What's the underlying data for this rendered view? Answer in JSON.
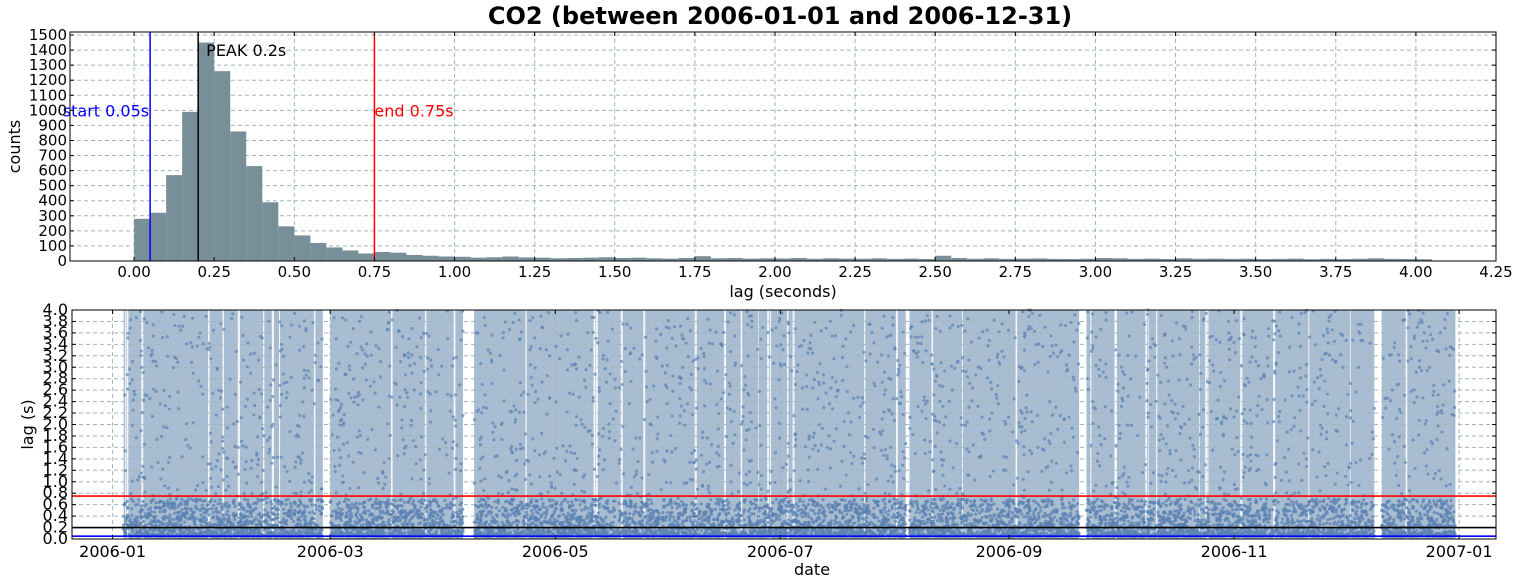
{
  "title": "CO2 (between 2006-01-01 and 2006-12-31)",
  "chart_data": [
    {
      "type": "bar",
      "kind": "histogram",
      "xlabel": "lag (seconds)",
      "ylabel": "counts",
      "xlim": [
        -0.2,
        4.25
      ],
      "ylim": [
        0,
        1520
      ],
      "xticks": [
        0.0,
        0.25,
        0.5,
        0.75,
        1.0,
        1.25,
        1.5,
        1.75,
        2.0,
        2.25,
        2.5,
        2.75,
        3.0,
        3.25,
        3.5,
        3.75,
        4.0,
        4.25
      ],
      "xtick_labels": [
        "0.00",
        "0.25",
        "0.50",
        "0.75",
        "1.00",
        "1.25",
        "1.50",
        "1.75",
        "2.00",
        "2.25",
        "2.50",
        "2.75",
        "3.00",
        "3.25",
        "3.50",
        "3.75",
        "4.00",
        "4.25"
      ],
      "yticks": [
        0,
        100,
        200,
        300,
        400,
        500,
        600,
        700,
        800,
        900,
        1000,
        1100,
        1200,
        1300,
        1400,
        1500
      ],
      "grid": true,
      "bar_color": "#788f9a",
      "bin_width": 0.05,
      "bins": [
        {
          "x": 0.0,
          "count": 280
        },
        {
          "x": 0.05,
          "count": 320
        },
        {
          "x": 0.1,
          "count": 570
        },
        {
          "x": 0.15,
          "count": 990
        },
        {
          "x": 0.2,
          "count": 1450
        },
        {
          "x": 0.25,
          "count": 1260
        },
        {
          "x": 0.3,
          "count": 860
        },
        {
          "x": 0.35,
          "count": 630
        },
        {
          "x": 0.4,
          "count": 390
        },
        {
          "x": 0.45,
          "count": 230
        },
        {
          "x": 0.5,
          "count": 170
        },
        {
          "x": 0.55,
          "count": 120
        },
        {
          "x": 0.6,
          "count": 90
        },
        {
          "x": 0.65,
          "count": 70
        },
        {
          "x": 0.7,
          "count": 50
        },
        {
          "x": 0.75,
          "count": 60
        },
        {
          "x": 0.8,
          "count": 55
        },
        {
          "x": 0.85,
          "count": 40
        },
        {
          "x": 0.9,
          "count": 35
        },
        {
          "x": 0.95,
          "count": 30
        },
        {
          "x": 1.0,
          "count": 28
        },
        {
          "x": 1.05,
          "count": 22
        },
        {
          "x": 1.1,
          "count": 25
        },
        {
          "x": 1.15,
          "count": 30
        },
        {
          "x": 1.2,
          "count": 24
        },
        {
          "x": 1.25,
          "count": 22
        },
        {
          "x": 1.3,
          "count": 18
        },
        {
          "x": 1.35,
          "count": 20
        },
        {
          "x": 1.4,
          "count": 22
        },
        {
          "x": 1.45,
          "count": 25
        },
        {
          "x": 1.5,
          "count": 20
        },
        {
          "x": 1.55,
          "count": 22
        },
        {
          "x": 1.6,
          "count": 18
        },
        {
          "x": 1.65,
          "count": 16
        },
        {
          "x": 1.7,
          "count": 20
        },
        {
          "x": 1.75,
          "count": 32
        },
        {
          "x": 1.8,
          "count": 18
        },
        {
          "x": 1.85,
          "count": 20
        },
        {
          "x": 1.9,
          "count": 16
        },
        {
          "x": 1.95,
          "count": 18
        },
        {
          "x": 2.0,
          "count": 17
        },
        {
          "x": 2.05,
          "count": 20
        },
        {
          "x": 2.1,
          "count": 15
        },
        {
          "x": 2.15,
          "count": 18
        },
        {
          "x": 2.2,
          "count": 16
        },
        {
          "x": 2.25,
          "count": 15
        },
        {
          "x": 2.3,
          "count": 18
        },
        {
          "x": 2.35,
          "count": 14
        },
        {
          "x": 2.4,
          "count": 16
        },
        {
          "x": 2.45,
          "count": 13
        },
        {
          "x": 2.5,
          "count": 35
        },
        {
          "x": 2.55,
          "count": 20
        },
        {
          "x": 2.6,
          "count": 15
        },
        {
          "x": 2.65,
          "count": 18
        },
        {
          "x": 2.7,
          "count": 14
        },
        {
          "x": 2.75,
          "count": 16
        },
        {
          "x": 2.8,
          "count": 17
        },
        {
          "x": 2.85,
          "count": 14
        },
        {
          "x": 2.9,
          "count": 13
        },
        {
          "x": 2.95,
          "count": 15
        },
        {
          "x": 3.0,
          "count": 20
        },
        {
          "x": 3.05,
          "count": 18
        },
        {
          "x": 3.1,
          "count": 14
        },
        {
          "x": 3.15,
          "count": 16
        },
        {
          "x": 3.2,
          "count": 13
        },
        {
          "x": 3.25,
          "count": 18
        },
        {
          "x": 3.3,
          "count": 15
        },
        {
          "x": 3.35,
          "count": 16
        },
        {
          "x": 3.4,
          "count": 14
        },
        {
          "x": 3.45,
          "count": 15
        },
        {
          "x": 3.5,
          "count": 13
        },
        {
          "x": 3.55,
          "count": 14
        },
        {
          "x": 3.6,
          "count": 16
        },
        {
          "x": 3.65,
          "count": 12
        },
        {
          "x": 3.7,
          "count": 14
        },
        {
          "x": 3.75,
          "count": 13
        },
        {
          "x": 3.8,
          "count": 15
        },
        {
          "x": 3.85,
          "count": 18
        },
        {
          "x": 3.9,
          "count": 14
        },
        {
          "x": 3.95,
          "count": 13
        },
        {
          "x": 4.0,
          "count": 12
        }
      ],
      "vlines": [
        {
          "x": 0.05,
          "color": "#0000ff",
          "label": "start 0.05s",
          "label_y": 1000
        },
        {
          "x": 0.2,
          "color": "#000000",
          "label": "PEAK 0.2s",
          "label_y": 1400
        },
        {
          "x": 0.75,
          "color": "#ff0000",
          "label": "end 0.75s",
          "label_y": 1000
        }
      ]
    },
    {
      "type": "scatter",
      "xlabel": "date",
      "ylabel": "lag (s)",
      "xlim": [
        "2005-12-21",
        "2007-01-11"
      ],
      "ylim": [
        0.0,
        4.0
      ],
      "xticks": [
        "2006-01",
        "2006-03",
        "2006-05",
        "2006-07",
        "2006-09",
        "2006-11",
        "2007-01"
      ],
      "xtick_dates": [
        "2006-01-01",
        "2006-03-01",
        "2006-05-01",
        "2006-07-01",
        "2006-09-01",
        "2006-11-01",
        "2007-01-01"
      ],
      "yticks": [
        "0.0",
        "0.2",
        "0.4",
        "0.6",
        "0.8",
        "1.0",
        "1.2",
        "1.4",
        "1.6",
        "1.8",
        "2.0",
        "2.2",
        "2.4",
        "2.6",
        "2.8",
        "3.0",
        "3.2",
        "3.4",
        "3.6",
        "3.8",
        "4.0"
      ],
      "grid": true,
      "band_color": "#a9bdd2",
      "point_color": "#5b81b2",
      "coverage": [
        [
          "2006-01-04",
          "2006-02-27"
        ],
        [
          "2006-03-01",
          "2006-04-06"
        ],
        [
          "2006-04-09",
          "2006-08-04"
        ],
        [
          "2006-08-05",
          "2006-09-20"
        ],
        [
          "2006-09-22",
          "2006-12-09"
        ],
        [
          "2006-12-11",
          "2006-12-31"
        ]
      ],
      "hlines": [
        {
          "y": 0.75,
          "color": "#ff0000"
        },
        {
          "y": 0.2,
          "color": "#000000"
        },
        {
          "y": 0.05,
          "color": "#0000ff"
        }
      ]
    }
  ]
}
